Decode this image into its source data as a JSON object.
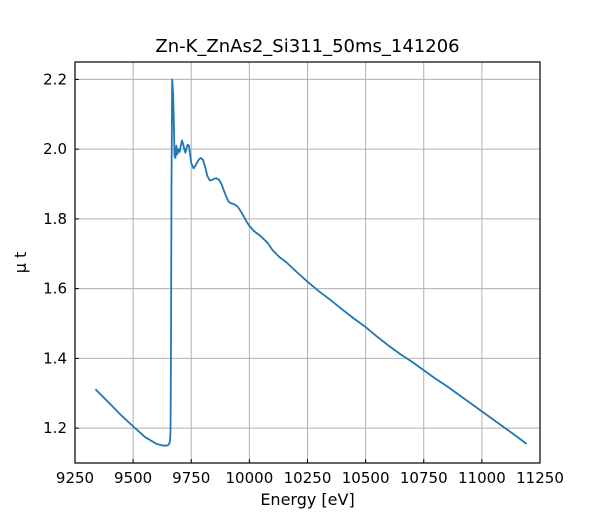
{
  "chart_data": {
    "type": "line",
    "title": "Zn-K_ZnAs2_Si311_50ms_141206",
    "xlabel": "Energy [eV]",
    "ylabel": "μ t",
    "xlim": [
      9250,
      11250
    ],
    "ylim": [
      1.1,
      2.25
    ],
    "x_ticks": [
      9250,
      9500,
      9750,
      10000,
      10250,
      10500,
      10750,
      11000,
      11250
    ],
    "y_ticks": [
      1.2,
      1.4,
      1.6,
      1.8,
      2.0,
      2.2
    ],
    "x_tick_labels": [
      "9250",
      "9500",
      "9750",
      "10000",
      "10250",
      "10500",
      "10750",
      "11000",
      "11250"
    ],
    "y_tick_labels": [
      "1.2",
      "1.4",
      "1.6",
      "1.8",
      "2.0",
      "2.2"
    ],
    "grid": true,
    "series": [
      {
        "color": "#1f77b4",
        "x": [
          9340,
          9400,
          9450,
          9500,
          9550,
          9600,
          9630,
          9645,
          9652,
          9656,
          9659,
          9661,
          9663,
          9665,
          9668,
          9672,
          9675,
          9678,
          9682,
          9686,
          9690,
          9695,
          9700,
          9705,
          9710,
          9715,
          9720,
          9725,
          9730,
          9735,
          9740,
          9745,
          9750,
          9760,
          9770,
          9780,
          9790,
          9800,
          9810,
          9820,
          9830,
          9840,
          9850,
          9860,
          9870,
          9880,
          9890,
          9900,
          9910,
          9920,
          9930,
          9940,
          9950,
          9960,
          9975,
          9990,
          10000,
          10020,
          10050,
          10080,
          10100,
          10130,
          10160,
          10200,
          10250,
          10300,
          10350,
          10400,
          10450,
          10500,
          10550,
          10600,
          10650,
          10700,
          10750,
          10800,
          10850,
          10900,
          10950,
          11000,
          11050,
          11100,
          11150,
          11190
        ],
        "y": [
          1.31,
          1.27,
          1.236,
          1.205,
          1.175,
          1.155,
          1.15,
          1.15,
          1.152,
          1.157,
          1.165,
          1.2,
          1.45,
          1.9,
          2.2,
          2.16,
          2.08,
          1.98,
          1.975,
          2.01,
          1.985,
          2.0,
          1.992,
          2.01,
          2.025,
          2.015,
          2.0,
          1.99,
          2.005,
          2.013,
          2.01,
          1.985,
          1.96,
          1.945,
          1.955,
          1.968,
          1.975,
          1.97,
          1.948,
          1.922,
          1.91,
          1.912,
          1.916,
          1.916,
          1.912,
          1.9,
          1.882,
          1.865,
          1.85,
          1.845,
          1.843,
          1.84,
          1.835,
          1.825,
          1.808,
          1.79,
          1.78,
          1.765,
          1.75,
          1.73,
          1.71,
          1.69,
          1.675,
          1.65,
          1.62,
          1.592,
          1.567,
          1.54,
          1.514,
          1.49,
          1.462,
          1.436,
          1.412,
          1.39,
          1.366,
          1.342,
          1.32,
          1.296,
          1.272,
          1.248,
          1.224,
          1.2,
          1.176,
          1.156
        ]
      }
    ]
  }
}
